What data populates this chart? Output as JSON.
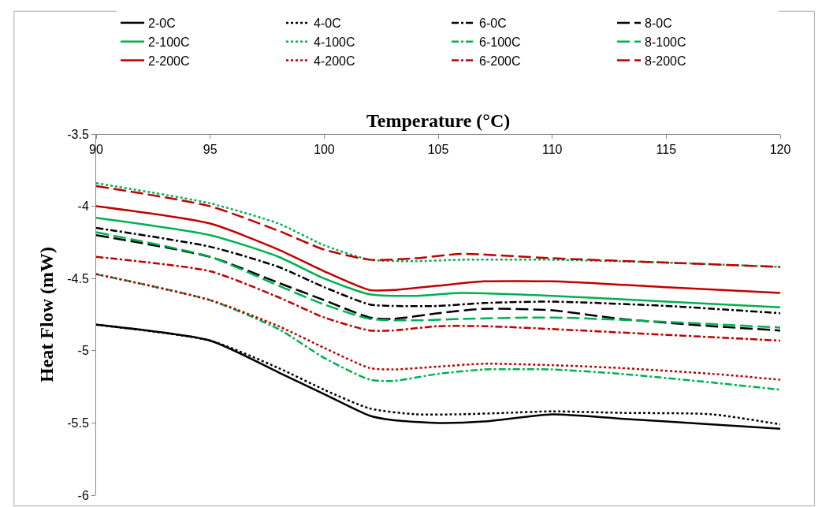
{
  "chart_data": {
    "type": "line",
    "xlabel": "Temperature (°C)",
    "ylabel": "Heat Flow (mW)",
    "xlim": [
      90,
      120
    ],
    "xticks": [
      90,
      95,
      100,
      105,
      110,
      115,
      120
    ],
    "ylim": [
      -6,
      -3.5
    ],
    "yticks": [
      -6,
      -5.5,
      -5,
      -4.5,
      -4,
      -3.5
    ],
    "grid": false,
    "legend": "top",
    "marker": "none",
    "series": [
      {
        "name": "2-0C",
        "color": "#000000",
        "line_style": "solid",
        "x": [
          90,
          95,
          98,
          100,
          102,
          103,
          105,
          107,
          110,
          113,
          117,
          120
        ],
        "values": [
          -4.82,
          -4.93,
          -5.15,
          -5.3,
          -5.45,
          -5.48,
          -5.5,
          -5.49,
          -5.44,
          -5.47,
          -5.51,
          -5.54
        ]
      },
      {
        "name": "4-0C",
        "color": "#000000",
        "line_style": "dotted",
        "x": [
          90,
          95,
          98,
          100,
          102,
          104,
          106,
          108,
          110,
          113,
          117,
          120
        ],
        "values": [
          -4.82,
          -4.93,
          -5.12,
          -5.27,
          -5.4,
          -5.44,
          -5.44,
          -5.43,
          -5.42,
          -5.43,
          -5.44,
          -5.51
        ]
      },
      {
        "name": "6-0C",
        "color": "#000000",
        "line_style": "dashdot",
        "x": [
          90,
          95,
          98,
          100,
          102,
          103,
          105,
          107,
          110,
          115,
          120
        ],
        "values": [
          -4.15,
          -4.28,
          -4.42,
          -4.56,
          -4.68,
          -4.69,
          -4.69,
          -4.67,
          -4.66,
          -4.69,
          -4.74
        ]
      },
      {
        "name": "8-0C",
        "color": "#000000",
        "line_style": "dashed",
        "x": [
          90,
          95,
          98,
          100,
          102,
          103,
          105,
          107,
          110,
          113,
          117,
          120
        ],
        "values": [
          -4.2,
          -4.35,
          -4.53,
          -4.65,
          -4.77,
          -4.78,
          -4.74,
          -4.71,
          -4.72,
          -4.78,
          -4.83,
          -4.86
        ]
      },
      {
        "name": "2-100C",
        "color": "#00b050",
        "line_style": "solid",
        "x": [
          90,
          95,
          98,
          100,
          102,
          104,
          106,
          110,
          115,
          120
        ],
        "values": [
          -4.08,
          -4.2,
          -4.35,
          -4.5,
          -4.61,
          -4.62,
          -4.6,
          -4.62,
          -4.66,
          -4.7
        ]
      },
      {
        "name": "4-100C",
        "color": "#00b050",
        "line_style": "dotted",
        "x": [
          90,
          95,
          98,
          100,
          102,
          104,
          106,
          110,
          115,
          120
        ],
        "values": [
          -3.84,
          -3.98,
          -4.12,
          -4.27,
          -4.37,
          -4.38,
          -4.37,
          -4.37,
          -4.39,
          -4.42
        ]
      },
      {
        "name": "6-100C",
        "color": "#00b050",
        "line_style": "dashdot",
        "x": [
          90,
          95,
          98,
          100,
          102,
          103,
          105,
          107,
          110,
          113,
          117,
          120
        ],
        "values": [
          -4.47,
          -4.65,
          -4.85,
          -5.05,
          -5.2,
          -5.21,
          -5.16,
          -5.13,
          -5.13,
          -5.16,
          -5.22,
          -5.27
        ]
      },
      {
        "name": "8-100C",
        "color": "#00b050",
        "line_style": "dashed",
        "x": [
          90,
          95,
          98,
          100,
          102,
          104,
          106,
          110,
          115,
          120
        ],
        "values": [
          -4.18,
          -4.35,
          -4.55,
          -4.68,
          -4.78,
          -4.79,
          -4.78,
          -4.77,
          -4.8,
          -4.84
        ]
      },
      {
        "name": "2-200C",
        "color": "#c00000",
        "line_style": "solid",
        "x": [
          90,
          95,
          98,
          100,
          102,
          103,
          105,
          107,
          110,
          115,
          120
        ],
        "values": [
          -4.0,
          -4.12,
          -4.3,
          -4.45,
          -4.58,
          -4.58,
          -4.55,
          -4.52,
          -4.52,
          -4.56,
          -4.6
        ]
      },
      {
        "name": "4-200C",
        "color": "#c00000",
        "line_style": "dotted",
        "x": [
          90,
          95,
          98,
          100,
          102,
          103,
          105,
          107,
          110,
          113,
          117,
          120
        ],
        "values": [
          -4.47,
          -4.65,
          -4.83,
          -4.98,
          -5.12,
          -5.13,
          -5.11,
          -5.09,
          -5.1,
          -5.12,
          -5.16,
          -5.2
        ]
      },
      {
        "name": "6-200C",
        "color": "#c00000",
        "line_style": "dashdot",
        "x": [
          90,
          95,
          98,
          100,
          102,
          103,
          105,
          107,
          110,
          115,
          120
        ],
        "values": [
          -4.35,
          -4.45,
          -4.63,
          -4.77,
          -4.86,
          -4.86,
          -4.83,
          -4.83,
          -4.85,
          -4.89,
          -4.93
        ]
      },
      {
        "name": "8-200C",
        "color": "#c00000",
        "line_style": "dashed",
        "x": [
          90,
          95,
          98,
          100,
          102,
          104,
          106,
          110,
          115,
          120
        ],
        "values": [
          -3.86,
          -4.0,
          -4.17,
          -4.3,
          -4.37,
          -4.36,
          -4.33,
          -4.36,
          -4.39,
          -4.42
        ]
      }
    ]
  }
}
